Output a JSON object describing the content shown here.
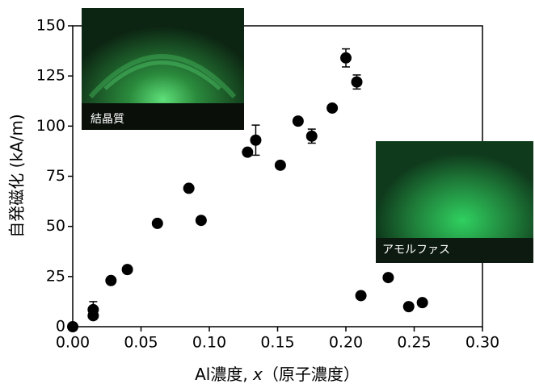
{
  "chart_data": {
    "type": "scatter",
    "xlabel": [
      "Al濃度, ",
      "x",
      "（原子濃度）"
    ],
    "ylabel": "自発磁化 (kA/m)",
    "xlim": [
      0,
      0.3
    ],
    "ylim": [
      0,
      150
    ],
    "xticks": [
      {
        "value": 0,
        "label": "0.00"
      },
      0.05,
      {
        "value": 0.1,
        "label": "0.10"
      },
      0.15,
      {
        "value": 0.2,
        "label": "0.20"
      },
      0.25,
      {
        "value": 0.3,
        "label": "0.30"
      }
    ],
    "yticks": [
      0,
      25,
      50,
      75,
      100,
      125,
      150
    ],
    "annotations": [
      "結晶質",
      "アモルファス"
    ],
    "series": [
      {
        "color": "#000000",
        "x": [
          0,
          0.015,
          0.015,
          0.028,
          0.04,
          0.062,
          0.085,
          0.094,
          0.128,
          0.134,
          0.152,
          0.165,
          0.175,
          0.19,
          0.2,
          0.208,
          0.211,
          0.231,
          0.246,
          0.256
        ],
        "values": [
          0,
          5.5,
          8.5,
          23,
          28.5,
          51.5,
          69,
          53,
          87,
          93,
          80.5,
          102.5,
          95,
          109,
          134,
          122,
          15.5,
          24.5,
          10,
          12
        ],
        "errors": [
          null,
          null,
          4,
          null,
          null,
          null,
          null,
          null,
          null,
          7.5,
          null,
          null,
          3.5,
          null,
          4.5,
          3.5,
          null,
          null,
          null,
          null
        ]
      }
    ]
  }
}
